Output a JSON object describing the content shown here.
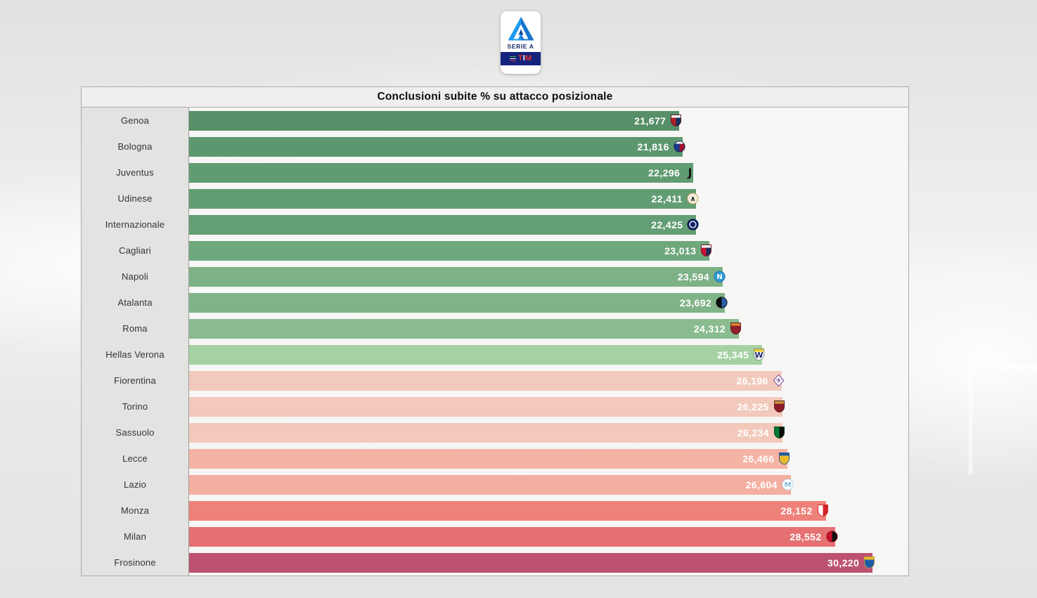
{
  "chart_title": "Conclusioni subite % su attacco posizionale",
  "logo": {
    "league_name": "SERIE A",
    "tim_t": "T",
    "tim_i": "I",
    "tim_m": "M"
  },
  "chart_data": {
    "type": "bar",
    "orientation": "horizontal",
    "title": "Conclusioni subite % su attacco posizionale",
    "xlabel": "",
    "ylabel": "",
    "grid": false,
    "legend": false,
    "xlim": [
      0,
      31.8
    ],
    "sort": "ascending (best/green at top, worst/red at bottom)",
    "value_label_position": "inside-end, white bold, Italian decimal comma",
    "categories": [
      "Genoa",
      "Bologna",
      "Juventus",
      "Udinese",
      "Internazionale",
      "Cagliari",
      "Napoli",
      "Atalanta",
      "Roma",
      "Hellas Verona",
      "Fiorentina",
      "Torino",
      "Sassuolo",
      "Lecce",
      "Lazio",
      "Monza",
      "Milan",
      "Frosinone"
    ],
    "values": [
      21.677,
      21.816,
      22.296,
      22.411,
      22.425,
      23.013,
      23.594,
      23.692,
      24.312,
      25.345,
      26.196,
      26.225,
      26.234,
      26.466,
      26.604,
      28.152,
      28.552,
      30.22
    ],
    "value_labels": [
      "21,677",
      "21,816",
      "22,296",
      "22,411",
      "22,425",
      "23,013",
      "23,594",
      "23,692",
      "24,312",
      "25,345",
      "26,196",
      "26,225",
      "26,234",
      "26,466",
      "26,604",
      "28,152",
      "28,552",
      "30,220"
    ],
    "bar_colors": [
      "#568F68",
      "#5D976F",
      "#619B72",
      "#639D74",
      "#649E75",
      "#70A87E",
      "#7DB186",
      "#80B388",
      "#8ABC8F",
      "#A5D2A2",
      "#F2CABC",
      "#F2C9BB",
      "#F2C9BA",
      "#F5B3A4",
      "#F4AFA0",
      "#EE8179",
      "#E57172",
      "#BC5270"
    ],
    "color_scale": "green (low) to red (high)"
  },
  "crests": [
    {
      "name": "genoa-crest",
      "shape": "shield",
      "top": "#FFFFFF",
      "left": "#B01E28",
      "right": "#123063",
      "border": "#5A1020"
    },
    {
      "name": "bologna-crest",
      "shape": "circle",
      "top": "#FFFFFF",
      "left": "#1B3C8C",
      "right": "#A3122E",
      "border": "#0D2250"
    },
    {
      "name": "juventus-crest",
      "shape": "none",
      "glyph": "J",
      "glyph_color": "#151515",
      "glyph_size": 16,
      "glyph_y": 15
    },
    {
      "name": "udinese-crest",
      "shape": "circle",
      "left": "#F3EDDD",
      "right": "#F3EDDD",
      "border": "#C2A35C",
      "glyph": "∧",
      "glyph_color": "#222222",
      "glyph_size": 10,
      "glyph_y": 13
    },
    {
      "name": "inter-crest",
      "shape": "circle",
      "left": "#0E1F63",
      "right": "#0E1F63",
      "border": "#0A1540",
      "ring": "#FFFFFF"
    },
    {
      "name": "cagliari-crest",
      "shape": "shield",
      "top": "#FFFFFF",
      "left": "#C8102E",
      "right": "#1B2E5C",
      "border": "#7E1020"
    },
    {
      "name": "napoli-crest",
      "shape": "circle",
      "left": "#2F9BD6",
      "right": "#2F9BD6",
      "border": "#1A6FAE",
      "glyph": "N",
      "glyph_color": "#FFFFFF",
      "glyph_size": 10,
      "glyph_y": 13
    },
    {
      "name": "atalanta-crest",
      "shape": "circle",
      "left": "#0E0E12",
      "right": "#2C5FA8",
      "border": "#0A0A0A"
    },
    {
      "name": "roma-crest",
      "shape": "shield",
      "top": "#E0892F",
      "left": "#8E1F2E",
      "right": "#8E1F2E",
      "border": "#5E1218"
    },
    {
      "name": "hellas-verona-crest",
      "shape": "shield",
      "top": "#F2D024",
      "left": "#FFFFFF",
      "right": "#FFFFFF",
      "border": "#8A8A8A",
      "glyph": "W",
      "glyph_color": "#1D2B6E",
      "glyph_size": 11,
      "glyph_y": 14
    },
    {
      "name": "fiorentina-crest",
      "shape": "diamond",
      "left": "#FFFFFF",
      "right": "#FFFFFF",
      "border": "#5B2A86",
      "glyph": "⚜",
      "glyph_color": "#5B2A86",
      "glyph_size": 10,
      "glyph_y": 13
    },
    {
      "name": "torino-crest",
      "shape": "shield",
      "top": "#C79A3D",
      "left": "#8C1C25",
      "right": "#8C1C25",
      "border": "#5E1218"
    },
    {
      "name": "sassuolo-crest",
      "shape": "shield",
      "left": "#007A33",
      "right": "#0B0B0B",
      "border": "#04401C"
    },
    {
      "name": "lecce-crest",
      "shape": "shield",
      "top": "#2060A0",
      "left": "#E9BB2A",
      "right": "#E9BB2A",
      "border": "#1C4F8C"
    },
    {
      "name": "lazio-crest",
      "shape": "circle",
      "left": "#FFFFFF",
      "right": "#FFFFFF",
      "border": "#BBD7EA",
      "glyph": "M",
      "glyph_color": "#7FB8DE",
      "glyph_size": 10,
      "glyph_y": 13
    },
    {
      "name": "monza-crest",
      "shape": "shield",
      "left": "#FFFFFF",
      "right": "#D2232A",
      "border": "#D2232A"
    },
    {
      "name": "milan-crest",
      "shape": "circle",
      "left": "#C8102E",
      "right": "#111111",
      "border": "#8E0C20"
    },
    {
      "name": "frosinone-crest",
      "shape": "shield",
      "top": "#E9BB2A",
      "left": "#1B5EA6",
      "right": "#1B5EA6",
      "border": "#C79A3D"
    }
  ]
}
